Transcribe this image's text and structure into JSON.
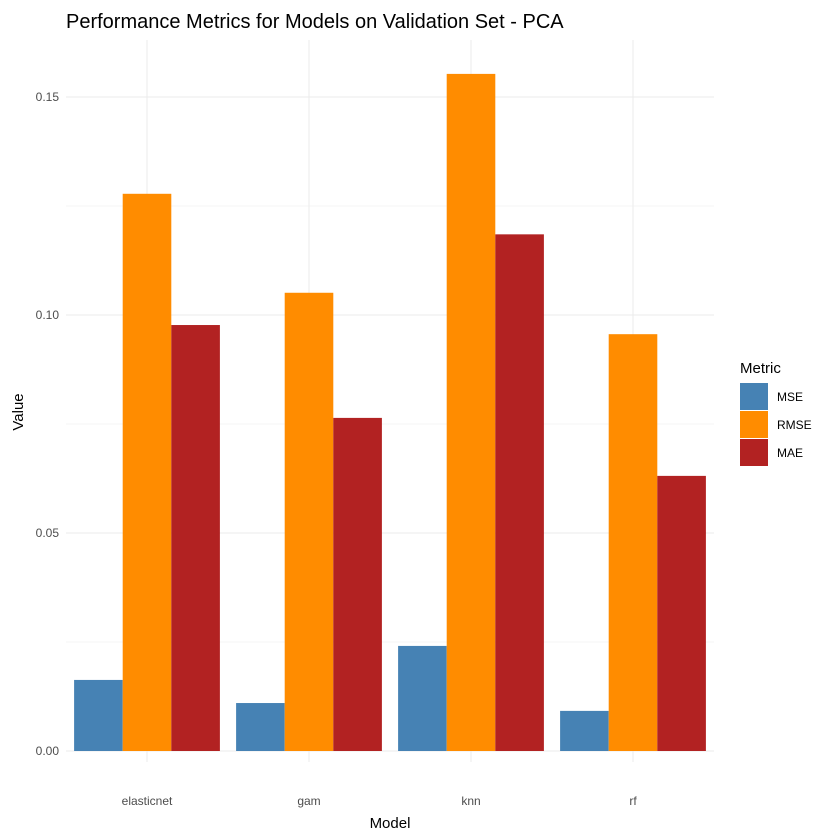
{
  "chart_data": {
    "type": "bar",
    "title": "Performance Metrics for Models on Validation Set - PCA",
    "xlabel": "Model",
    "ylabel": "Value",
    "categories": [
      "elasticnet",
      "gam",
      "knn",
      "rf"
    ],
    "series": [
      {
        "name": "MSE",
        "color": "#4682B4",
        "values": [
          0.0163,
          0.011,
          0.0241,
          0.0092
        ]
      },
      {
        "name": "RMSE",
        "color": "#FF8C00",
        "values": [
          0.1278,
          0.1051,
          0.1553,
          0.0956
        ]
      },
      {
        "name": "MAE",
        "color": "#B22222",
        "values": [
          0.0977,
          0.0764,
          0.1185,
          0.0631
        ]
      }
    ],
    "ylim": [
      0,
      0.16
    ],
    "yticks": [
      0.0,
      0.05,
      0.1,
      0.15
    ],
    "ytick_labels": [
      "0.00",
      "0.05",
      "0.10",
      "0.15"
    ],
    "grid": true,
    "legend": {
      "title": "Metric",
      "placement": "right"
    }
  }
}
